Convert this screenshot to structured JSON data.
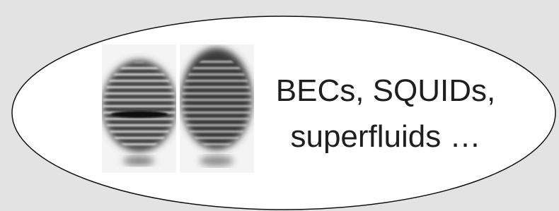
{
  "caption": {
    "lines": [
      "BECs, SQUIDs,",
      "superfluids …"
    ]
  }
}
